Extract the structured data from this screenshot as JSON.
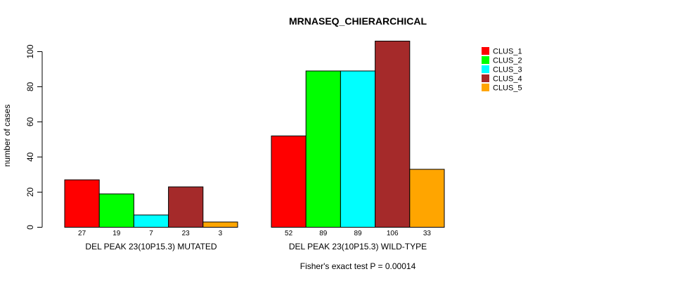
{
  "chart_data": {
    "type": "bar",
    "title": "MRNASEQ_CHIERARCHICAL",
    "xlabel": "",
    "ylabel": "number of cases",
    "ylim": [
      0,
      100
    ],
    "yticks": [
      0,
      20,
      40,
      60,
      80,
      100
    ],
    "categories": [
      "DEL PEAK 23(10P15.3) MUTATED",
      "DEL PEAK 23(10P15.3) WILD-TYPE"
    ],
    "series": [
      {
        "name": "CLUS_1",
        "color": "#ff0000",
        "values": [
          27,
          52
        ]
      },
      {
        "name": "CLUS_2",
        "color": "#00ff00",
        "values": [
          19,
          89
        ]
      },
      {
        "name": "CLUS_3",
        "color": "#00ffff",
        "values": [
          7,
          89
        ]
      },
      {
        "name": "CLUS_4",
        "color": "#a52a2a",
        "values": [
          23,
          106
        ]
      },
      {
        "name": "CLUS_5",
        "color": "#ffa500",
        "values": [
          3,
          33
        ]
      }
    ],
    "legend_position": "top-right",
    "grid": false,
    "annotation": "Fisher's exact test P = 0.00014"
  }
}
